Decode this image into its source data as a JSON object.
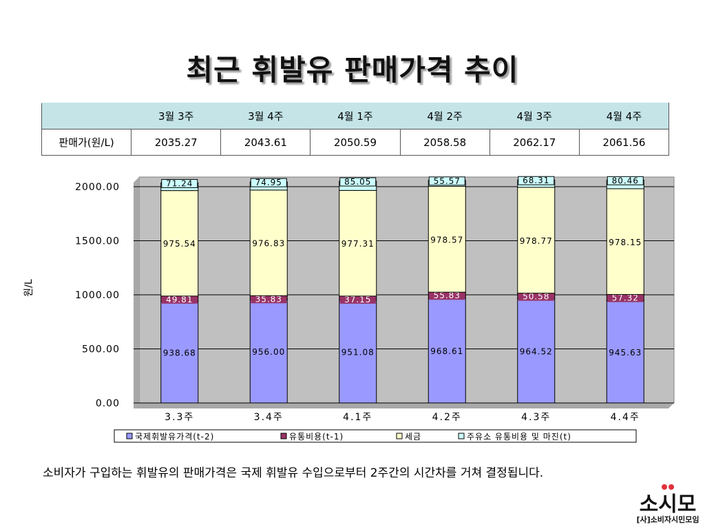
{
  "title": "최근 휘발유 판매가격 추이",
  "table": {
    "columns": [
      "",
      "3월 3주",
      "3월 4주",
      "4월 1주",
      "4월 2주",
      "4월 3주",
      "4월 4주"
    ],
    "row_label": "판매가(원/L)",
    "values": [
      "2035.27",
      "2043.61",
      "2050.59",
      "2058.58",
      "2062.17",
      "2061.56"
    ]
  },
  "chart_data": {
    "type": "bar",
    "stacked": true,
    "categories": [
      "3.3주",
      "3.4주",
      "4.1주",
      "4.2주",
      "4.3주",
      "4.4주"
    ],
    "series": [
      {
        "name": "국제휘발유가격(t-2)",
        "values": [
          938.68,
          956.0,
          951.08,
          968.61,
          964.52,
          945.63
        ],
        "color": "#9999ff"
      },
      {
        "name": "유통비용(t-1)",
        "values": [
          49.81,
          35.83,
          37.15,
          55.83,
          50.58,
          57.32
        ],
        "color": "#993366"
      },
      {
        "name": "세금",
        "values": [
          975.54,
          976.83,
          977.31,
          978.57,
          978.77,
          978.15
        ],
        "color": "#ffffcc"
      },
      {
        "name": "주유소 유통비용 및 마진(t)",
        "values": [
          71.24,
          74.95,
          85.05,
          55.57,
          68.31,
          80.46
        ],
        "color": "#ccffff"
      }
    ],
    "data_labels": [
      [
        "938.68",
        "956.00",
        "951.08",
        "968.61",
        "964.52",
        "945.63"
      ],
      [
        "49.81",
        "35.83",
        "37.15",
        "55.83",
        "50.58",
        "57.32"
      ],
      [
        "975.54",
        "976.83",
        "977.31",
        "978.57",
        "978.77",
        "978.15"
      ],
      [
        "71.24",
        "74.95",
        "85.05",
        "55.57",
        "68.31",
        "80.46"
      ]
    ],
    "y_ticks": [
      "0.00",
      "500.00",
      "1000.00",
      "1500.00",
      "2000.00"
    ],
    "ylabel": "원/L",
    "xlabel": "",
    "ylim": [
      0,
      2000
    ],
    "grid": true,
    "plot_background": "#c0c0c0",
    "legend_position": "bottom"
  },
  "footnote": "소비자가 구입하는 휘발유의 판매가격은 국제 휘발유 수입으로부터 2주간의 시간차를 거쳐 결정됩니다.",
  "logo": {
    "name": "소시모",
    "subtitle": "[사]소비자시민모임",
    "dot_color": "#e0303a"
  }
}
